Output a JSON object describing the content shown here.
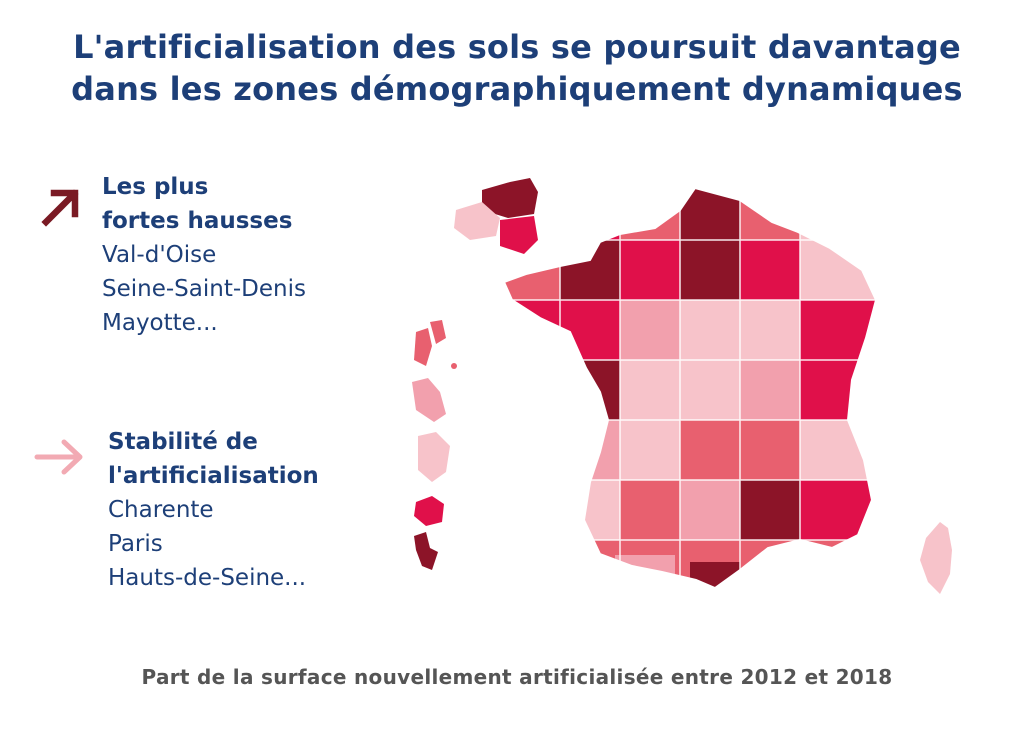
{
  "title": {
    "line1": "L'artificialisation des sols se poursuit davantage",
    "line2": "dans les zones démographiquement dynamiques"
  },
  "legend_up": {
    "icon": "arrow-up-right-icon",
    "color": "#7a1a24",
    "heading_line1": "Les plus",
    "heading_line2": "fortes hausses",
    "items": [
      "Val-d'Oise",
      "Seine-Saint-Denis",
      "Mayotte..."
    ]
  },
  "legend_flat": {
    "icon": "arrow-right-icon",
    "color": "#f2aab3",
    "heading_line1": "Stabilité de",
    "heading_line2": "l'artificialisation",
    "items": [
      "Charente",
      "Paris",
      "Hauts-de-Seine..."
    ]
  },
  "map": {
    "scale_colors": [
      "#f7c3ca",
      "#f2a0ad",
      "#e8606f",
      "#e0104a",
      "#8c1428"
    ]
  },
  "caption": "Part de la surface nouvellement artificialisée entre 2012 et 2018"
}
